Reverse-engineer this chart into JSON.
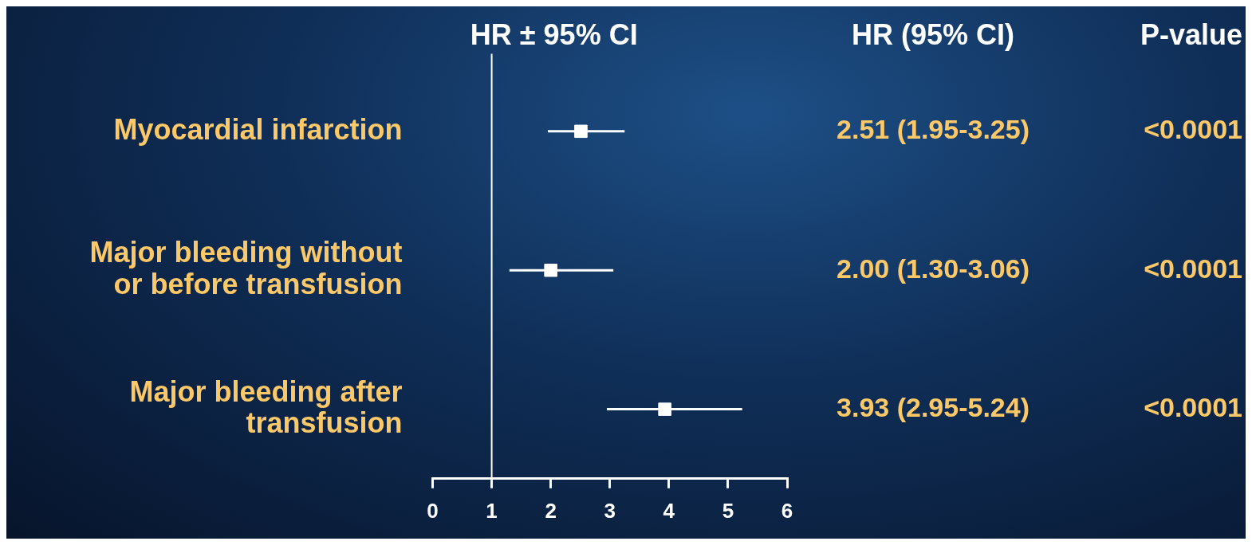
{
  "chart_data": {
    "type": "scatter",
    "orientation": "horizontal",
    "title": "HR ± 95% CI",
    "categories": [
      "Myocardial infarction",
      "Major bleeding without or before transfusion",
      "Major bleeding after transfusion"
    ],
    "values": [
      2.51,
      2.0,
      3.93
    ],
    "errors": [
      [
        1.95,
        3.25
      ],
      [
        1.3,
        3.06
      ],
      [
        2.95,
        5.24
      ]
    ],
    "value_labels": [
      "2.51 (1.95-3.25)",
      "2.00 (1.30-3.06)",
      "3.93 (2.95-5.24)"
    ],
    "color": "#ffffff",
    "marker": "square",
    "xlim": [
      0,
      6
    ],
    "xticks": [
      0,
      1,
      2,
      3,
      4,
      5,
      6
    ],
    "ref_lines": [
      {
        "axis": "x",
        "value": 1,
        "color": "#ffffff"
      }
    ],
    "grid": false,
    "legend": false,
    "annotations": [
      "HR (95% CI)",
      "P-value",
      "<0.0001",
      "<0.0001",
      "<0.0001"
    ]
  }
}
